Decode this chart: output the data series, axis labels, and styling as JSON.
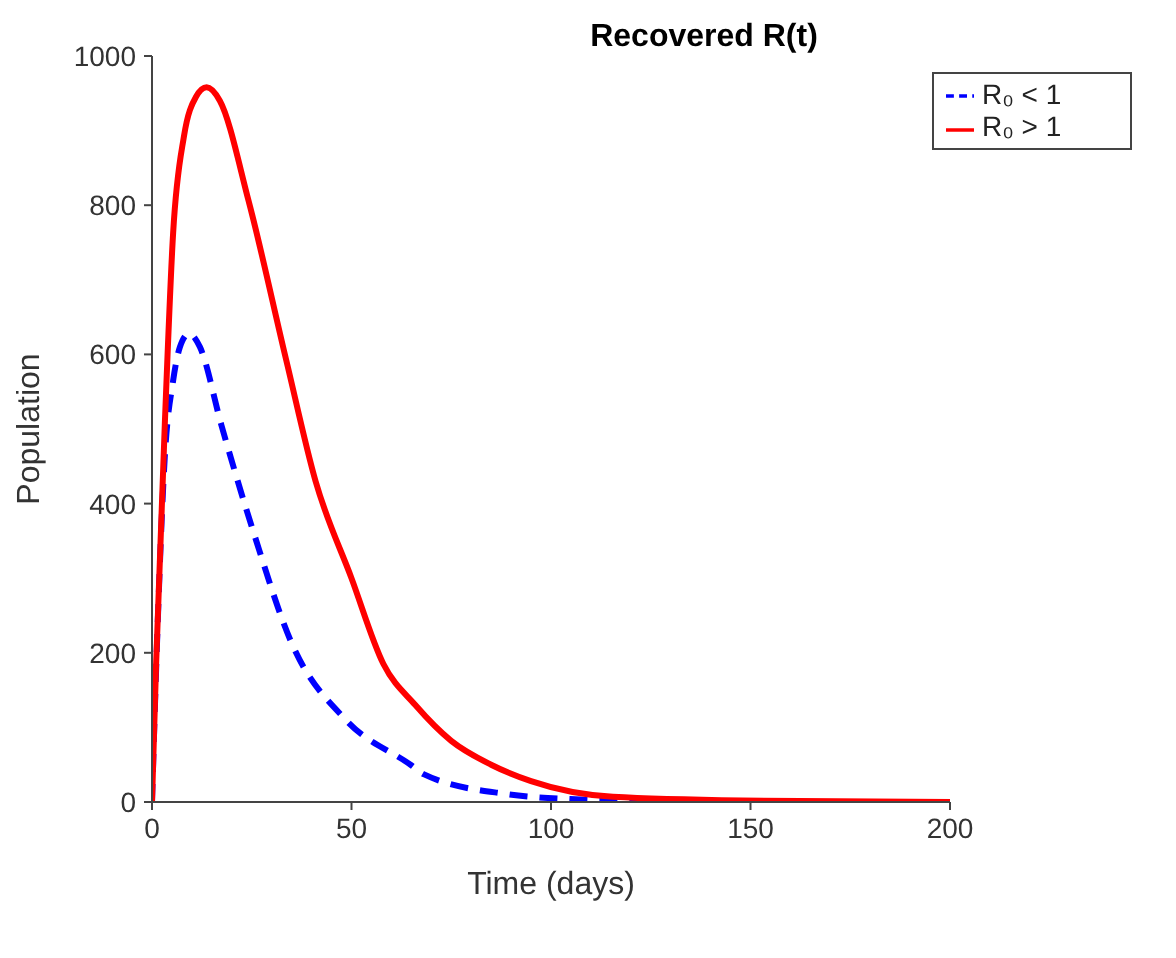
{
  "chart_data": {
    "type": "line",
    "title": "Recovered R(t)",
    "xlabel": "Time (days)",
    "ylabel": "Population",
    "xlim": [
      0,
      200
    ],
    "xticks": [
      0,
      50,
      100,
      150,
      200
    ],
    "ylim": [
      0,
      1000
    ],
    "yticks": [
      0,
      200,
      400,
      600,
      800,
      1000
    ],
    "grid": false,
    "legend": "top right",
    "marker": "none",
    "series": [
      {
        "name": "R₀ < 1",
        "color": "#0000ff",
        "line_style": "dashed",
        "x": [
          0,
          1.2,
          3.2,
          5.3,
          7,
          9.3,
          12,
          17.4,
          25.6,
          35,
          48.6,
          64.8,
          68.2,
          88.4,
          108.7,
          130,
          160,
          200
        ],
        "values": [
          0,
          204,
          462,
          565,
          610,
          628,
          610,
          505,
          359,
          213,
          110,
          50,
          37,
          11,
          3,
          0,
          0,
          0
        ]
      },
      {
        "name": "R₀ > 1",
        "color": "#ff0000",
        "line_style": "solid",
        "x": [
          0,
          1,
          3.2,
          5.3,
          8,
          11,
          13.7,
          17,
          24.2,
          33.7,
          41,
          50,
          58,
          66,
          75,
          85,
          95,
          115.5,
          148,
          200
        ],
        "values": [
          0,
          180,
          505,
          763,
          892,
          945,
          958,
          940,
          806,
          591,
          430,
          300,
          185,
          130,
          82,
          50,
          28,
          7,
          2,
          0
        ]
      }
    ]
  }
}
